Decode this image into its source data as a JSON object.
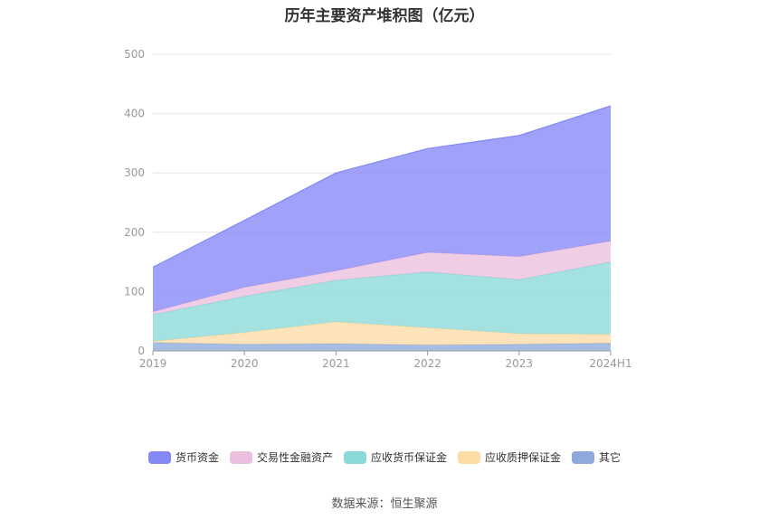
{
  "source_text": "数据来源：恒生聚源",
  "chart_data": {
    "type": "area",
    "stacked": true,
    "title": "历年主要资产堆积图（亿元）",
    "x": [
      "2019",
      "2020",
      "2021",
      "2022",
      "2023",
      "2024H1"
    ],
    "ylim": [
      0,
      500
    ],
    "yticks": [
      "0",
      "100",
      "200",
      "300",
      "400",
      "500"
    ],
    "grid": true,
    "legend_position": "bottom",
    "series": [
      {
        "name": "其它",
        "color": "#8eaadc",
        "values": [
          14,
          11,
          12,
          10,
          11,
          13
        ]
      },
      {
        "name": "应收质押保证金",
        "color": "#fddba5",
        "values": [
          2,
          20,
          37,
          29,
          18,
          15
        ]
      },
      {
        "name": "应收货币保证金",
        "color": "#8bdada",
        "values": [
          45,
          61,
          70,
          94,
          91,
          122
        ]
      },
      {
        "name": "交易性金融资产",
        "color": "#eabfde",
        "values": [
          5,
          15,
          16,
          33,
          39,
          35
        ]
      },
      {
        "name": "货币资金",
        "color": "#8488f6",
        "values": [
          75,
          113,
          165,
          175,
          204,
          228
        ]
      }
    ],
    "legend_order": [
      "货币资金",
      "交易性金融资产",
      "应收货币保证金",
      "应收质押保证金",
      "其它"
    ]
  }
}
